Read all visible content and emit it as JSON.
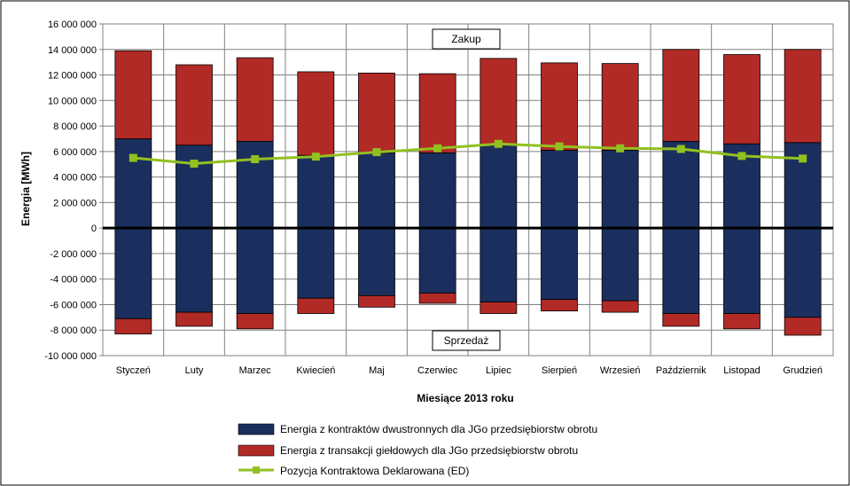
{
  "chart_data": {
    "type": "bar",
    "stacked": true,
    "xlabel": "Miesiące 2013  roku",
    "ylabel": "Energia [MWh]",
    "ylim": [
      -10000000,
      16000000
    ],
    "ytick_step": 2000000,
    "ytick_labels": [
      "-10 000 000",
      "-8 000 000",
      "-6 000 000",
      "-4 000 000",
      "-2 000 000",
      "0",
      "2 000 000",
      "4 000 000",
      "6 000 000",
      "8 000 000",
      "10 000 000",
      "12 000 000",
      "14 000 000",
      "16 000 000"
    ],
    "categories": [
      "Styczeń",
      "Luty",
      "Marzec",
      "Kwiecień",
      "Maj",
      "Czerwiec",
      "Lipiec",
      "Sierpień",
      "Wrzesień",
      "Październik",
      "Listopad",
      "Grudzień"
    ],
    "grid": true,
    "legend_position": "bottom",
    "annotations": {
      "top": "Zakup",
      "bottom": "Sprzedaż"
    },
    "series": [
      {
        "name": "Energia z kontraktów dwustronnych dla JGo przedsiębiorstw obrotu",
        "color": "#1b2f5e",
        "positive": [
          7000000,
          6500000,
          6800000,
          5700000,
          5900000,
          5900000,
          6500000,
          6100000,
          6100000,
          6800000,
          6600000,
          6700000
        ],
        "negative": [
          -7100000,
          -6600000,
          -6700000,
          -5500000,
          -5300000,
          -5100000,
          -5800000,
          -5600000,
          -5700000,
          -6700000,
          -6700000,
          -7000000
        ]
      },
      {
        "name": "Energia z transakcji giełdowych dla JGo przedsiębiorstw obrotu",
        "color": "#b22a26",
        "positive": [
          6900000,
          6300000,
          6550000,
          6550000,
          6250000,
          6200000,
          6800000,
          6850000,
          6800000,
          7200000,
          7000000,
          7300000
        ],
        "negative": [
          -1200000,
          -1100000,
          -1200000,
          -1200000,
          -900000,
          -800000,
          -900000,
          -900000,
          -900000,
          -1000000,
          -1200000,
          -1400000
        ]
      },
      {
        "name": "Pozycja Kontraktowa Deklarowana (ED)",
        "type": "line",
        "color": "#92c020",
        "values": [
          5500000,
          5050000,
          5400000,
          5600000,
          5950000,
          6250000,
          6600000,
          6400000,
          6250000,
          6200000,
          5650000,
          5450000
        ]
      }
    ]
  }
}
